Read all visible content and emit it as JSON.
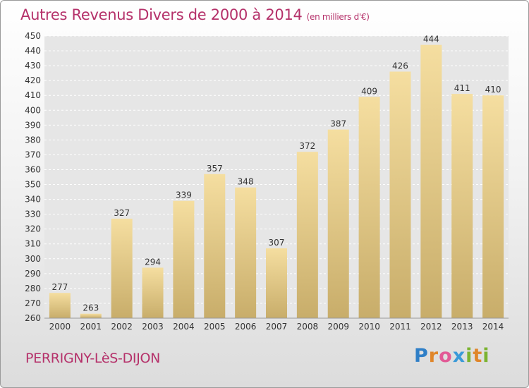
{
  "header": {
    "title": "Autres Revenus Divers de 2000 à 2014",
    "unit": "(en milliers d'€)"
  },
  "footer": {
    "city": "PERRIGNY-LèS-DIJON",
    "logo": "Proxiti"
  },
  "colors": {
    "title": "#b5316a",
    "bar_light": "#f5dea0",
    "bar_dark": "#c8ad6a"
  },
  "chart_data": {
    "type": "bar",
    "title": "Autres Revenus Divers de 2000 à 2014",
    "xlabel": "",
    "ylabel": "",
    "categories": [
      "2000",
      "2001",
      "2002",
      "2003",
      "2004",
      "2005",
      "2006",
      "2007",
      "2008",
      "2009",
      "2010",
      "2011",
      "2012",
      "2013",
      "2014"
    ],
    "values": [
      277,
      263,
      327,
      294,
      339,
      357,
      348,
      307,
      372,
      387,
      409,
      426,
      444,
      411,
      410
    ],
    "ylim": [
      260,
      450
    ],
    "ytick_step": 10,
    "grid": true
  }
}
